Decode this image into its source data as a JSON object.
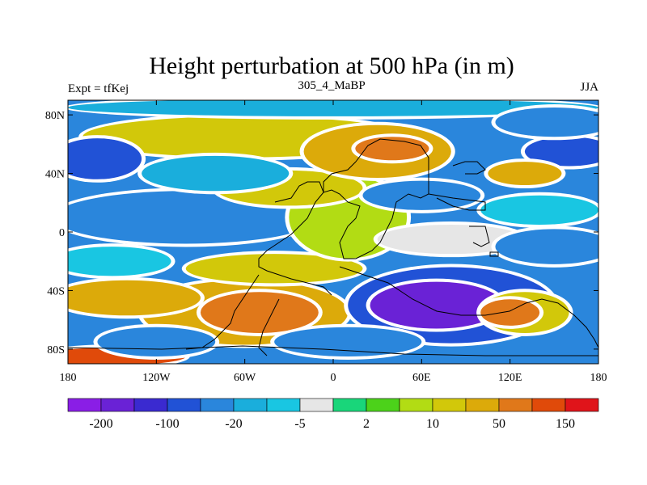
{
  "chart_data": {
    "type": "heatmap",
    "title": "Height perturbation at 500 hPa (in m)",
    "left_label": "Expt = tfKej",
    "center_label": "305_4_MaBP",
    "right_label": "JJA",
    "xlim": [
      -180,
      180
    ],
    "ylim": [
      -90,
      90
    ],
    "x_ticks": [
      {
        "value": -180,
        "label": "180"
      },
      {
        "value": -120,
        "label": "120W"
      },
      {
        "value": -60,
        "label": "60W"
      },
      {
        "value": 0,
        "label": "0"
      },
      {
        "value": 60,
        "label": "60E"
      },
      {
        "value": 120,
        "label": "120E"
      },
      {
        "value": 180,
        "label": "180"
      }
    ],
    "y_ticks": [
      {
        "value": 80,
        "label": "80N"
      },
      {
        "value": 40,
        "label": "40N"
      },
      {
        "value": 0,
        "label": "0"
      },
      {
        "value": -40,
        "label": "40S"
      },
      {
        "value": -80,
        "label": "80S"
      }
    ],
    "colorbar": {
      "colors": [
        "#8a1ee6",
        "#6a22d6",
        "#3a2ad0",
        "#2152d6",
        "#2a86dc",
        "#1aaedc",
        "#19c6e2",
        "#e6e6e6",
        "#19d67a",
        "#4cd21a",
        "#b2dc14",
        "#d2c80a",
        "#dcaa0a",
        "#e0781a",
        "#e04a0a",
        "#e0141a"
      ],
      "labels": [
        "-200",
        "-100",
        "-20",
        "-5",
        "2",
        "10",
        "50",
        "150"
      ]
    },
    "regions": [
      {
        "cx": -150,
        "cy": -85,
        "rx": 50,
        "ry": 6,
        "v": 160
      },
      {
        "cx": -60,
        "cy": -55,
        "rx": 70,
        "ry": 22,
        "v": 70
      },
      {
        "cx": -50,
        "cy": -55,
        "rx": 40,
        "ry": 14,
        "v": 140
      },
      {
        "cx": -140,
        "cy": -45,
        "rx": 50,
        "ry": 12,
        "v": 60
      },
      {
        "cx": -40,
        "cy": -25,
        "rx": 60,
        "ry": 10,
        "v": 30
      },
      {
        "cx": 80,
        "cy": -50,
        "rx": 70,
        "ry": 26,
        "v": -60
      },
      {
        "cx": 70,
        "cy": -50,
        "rx": 45,
        "ry": 16,
        "v": -150
      },
      {
        "cx": 130,
        "cy": -55,
        "rx": 30,
        "ry": 14,
        "v": 40
      },
      {
        "cx": 120,
        "cy": -55,
        "rx": 20,
        "ry": 9,
        "v": 120
      },
      {
        "cx": -120,
        "cy": -75,
        "rx": 40,
        "ry": 10,
        "v": -40
      },
      {
        "cx": 10,
        "cy": -75,
        "rx": 50,
        "ry": 10,
        "v": -20
      },
      {
        "cx": -100,
        "cy": 10,
        "rx": 90,
        "ry": 18,
        "v": -20
      },
      {
        "cx": -150,
        "cy": -20,
        "rx": 40,
        "ry": 10,
        "v": -8
      },
      {
        "cx": 10,
        "cy": 10,
        "rx": 40,
        "ry": 28,
        "v": 20
      },
      {
        "cx": -30,
        "cy": 30,
        "rx": 50,
        "ry": 12,
        "v": 30
      },
      {
        "cx": 80,
        "cy": -5,
        "rx": 50,
        "ry": 10,
        "v": 2
      },
      {
        "cx": 150,
        "cy": -10,
        "rx": 40,
        "ry": 12,
        "v": -40
      },
      {
        "cx": 140,
        "cy": 15,
        "rx": 40,
        "ry": 10,
        "v": -5
      },
      {
        "cx": -60,
        "cy": 65,
        "rx": 110,
        "ry": 14,
        "v": 40
      },
      {
        "cx": 30,
        "cy": 55,
        "rx": 50,
        "ry": 18,
        "v": 60
      },
      {
        "cx": 40,
        "cy": 57,
        "rx": 25,
        "ry": 8,
        "v": 140
      },
      {
        "cx": -160,
        "cy": 50,
        "rx": 30,
        "ry": 14,
        "v": -80
      },
      {
        "cx": 160,
        "cy": 55,
        "rx": 30,
        "ry": 10,
        "v": -80
      },
      {
        "cx": 130,
        "cy": 40,
        "rx": 25,
        "ry": 8,
        "v": 60
      },
      {
        "cx": -80,
        "cy": 40,
        "rx": 50,
        "ry": 12,
        "v": -10
      },
      {
        "cx": 60,
        "cy": 25,
        "rx": 40,
        "ry": 10,
        "v": -20
      },
      {
        "cx": 0,
        "cy": 85,
        "rx": 180,
        "ry": 6,
        "v": -10
      },
      {
        "cx": 150,
        "cy": 75,
        "rx": 40,
        "ry": 10,
        "v": -40
      }
    ]
  }
}
